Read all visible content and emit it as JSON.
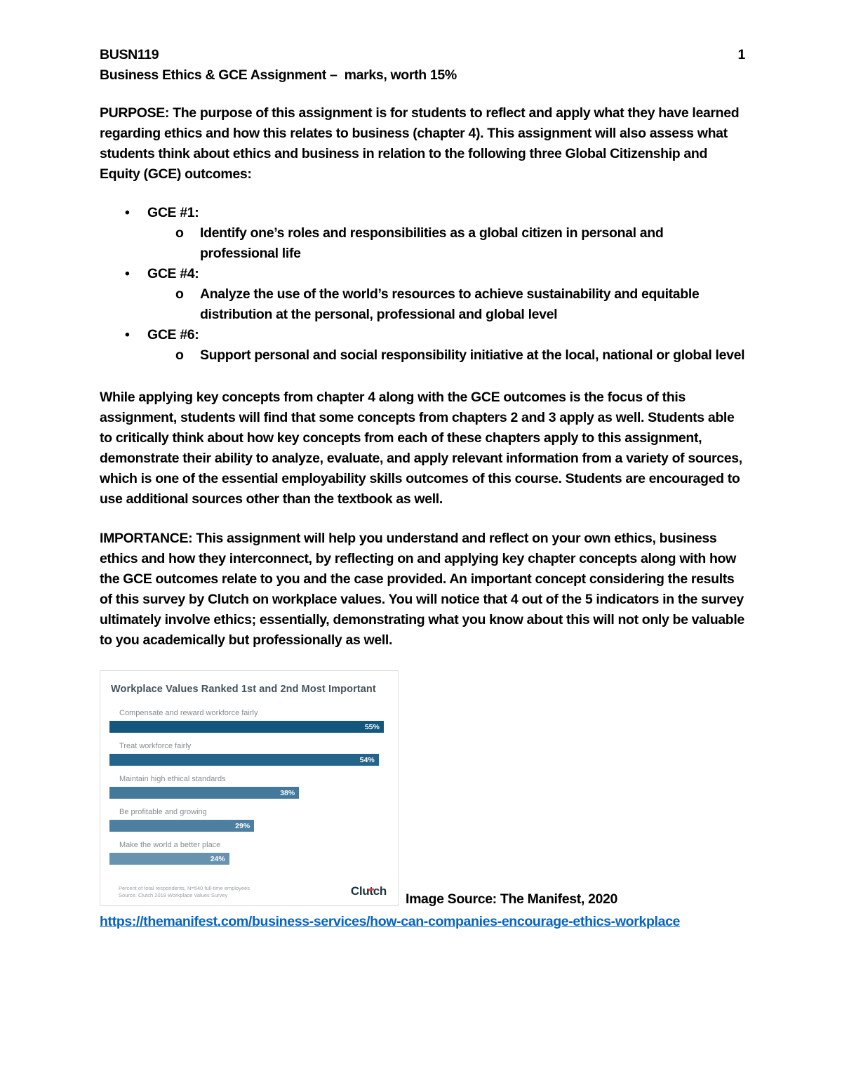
{
  "page": {
    "course_code": "BUSN119",
    "page_number": "1",
    "subtitle": "Business Ethics & GCE Assignment –  marks, worth 15%"
  },
  "purpose": {
    "label": "PURPOSE:",
    "text": " The purpose of this assignment is for students to reflect and apply what they have learned regarding ethics and how this relates to business (chapter 4). This assignment will also assess what students think about ethics and business in relation to the following three Global Citizenship and Equity (GCE) outcomes:"
  },
  "bullets": {
    "l1": "•",
    "l2": "o"
  },
  "gce_outcomes": [
    {
      "label": "GCE #1:",
      "description": "Identify one’s roles and responsibilities as a global citizen in personal and professional life"
    },
    {
      "label": "GCE #4:",
      "description": "Analyze the use of the world’s resources to achieve sustainability and equitable distribution at the personal, professional and global level"
    },
    {
      "label": "GCE #6:",
      "description": "Support personal and social responsibility initiative at the local, national or global level"
    }
  ],
  "while_paragraph": "While applying key concepts from chapter 4 along with the GCE outcomes is the focus of this assignment, students will find that some concepts from chapters 2 and 3 apply as well. Students able to critically think about how key concepts from each of these chapters apply to this assignment, demonstrate their ability to analyze, evaluate, and apply relevant information from a variety of sources, which is one of the essential employability skills outcomes of this course. Students are encouraged to use additional sources other than the textbook as well.",
  "importance": {
    "label": "IMPORTANCE:",
    "text": " This assignment will help you understand and reflect on your own ethics, business ethics and how they interconnect, by reflecting on and applying key chapter concepts along with how the GCE outcomes relate to you and the case provided. An important concept considering the results of this survey by Clutch on workplace values. You will notice that 4 out of the 5 indicators in the survey ultimately involve ethics; essentially, demonstrating what you know about this will not only be valuable to you academically but professionally as well."
  },
  "chart_data": {
    "type": "bar",
    "orientation": "horizontal",
    "title": "Workplace Values Ranked 1st and 2nd Most Important",
    "categories": [
      "Compensate and reward workforce fairly",
      "Treat workforce fairly",
      "Maintain high ethical standards",
      "Be profitable and growing",
      "Make the world a better place"
    ],
    "values": [
      55,
      54,
      38,
      29,
      24
    ],
    "value_labels": [
      "55%",
      "54%",
      "38%",
      "29%",
      "24%"
    ],
    "bar_colors": [
      "#15567c",
      "#25648a",
      "#44799b",
      "#4d80a0",
      "#6893ae"
    ],
    "xlim": [
      0,
      56
    ],
    "grid": false,
    "legend": false,
    "footnote_line1": "Percent of total respondents, N=540 full-time employees",
    "footnote_line2": "Source: Clutch 2018 Workplace Values Survey",
    "logo_text": "Clutch",
    "logo_accent_color": "#e5453a"
  },
  "caption": {
    "text": "Image Source: The Manifest, 2020"
  },
  "link": {
    "text": "https://themanifest.com/business-services/how-can-companies-encourage-ethics-workplace"
  }
}
